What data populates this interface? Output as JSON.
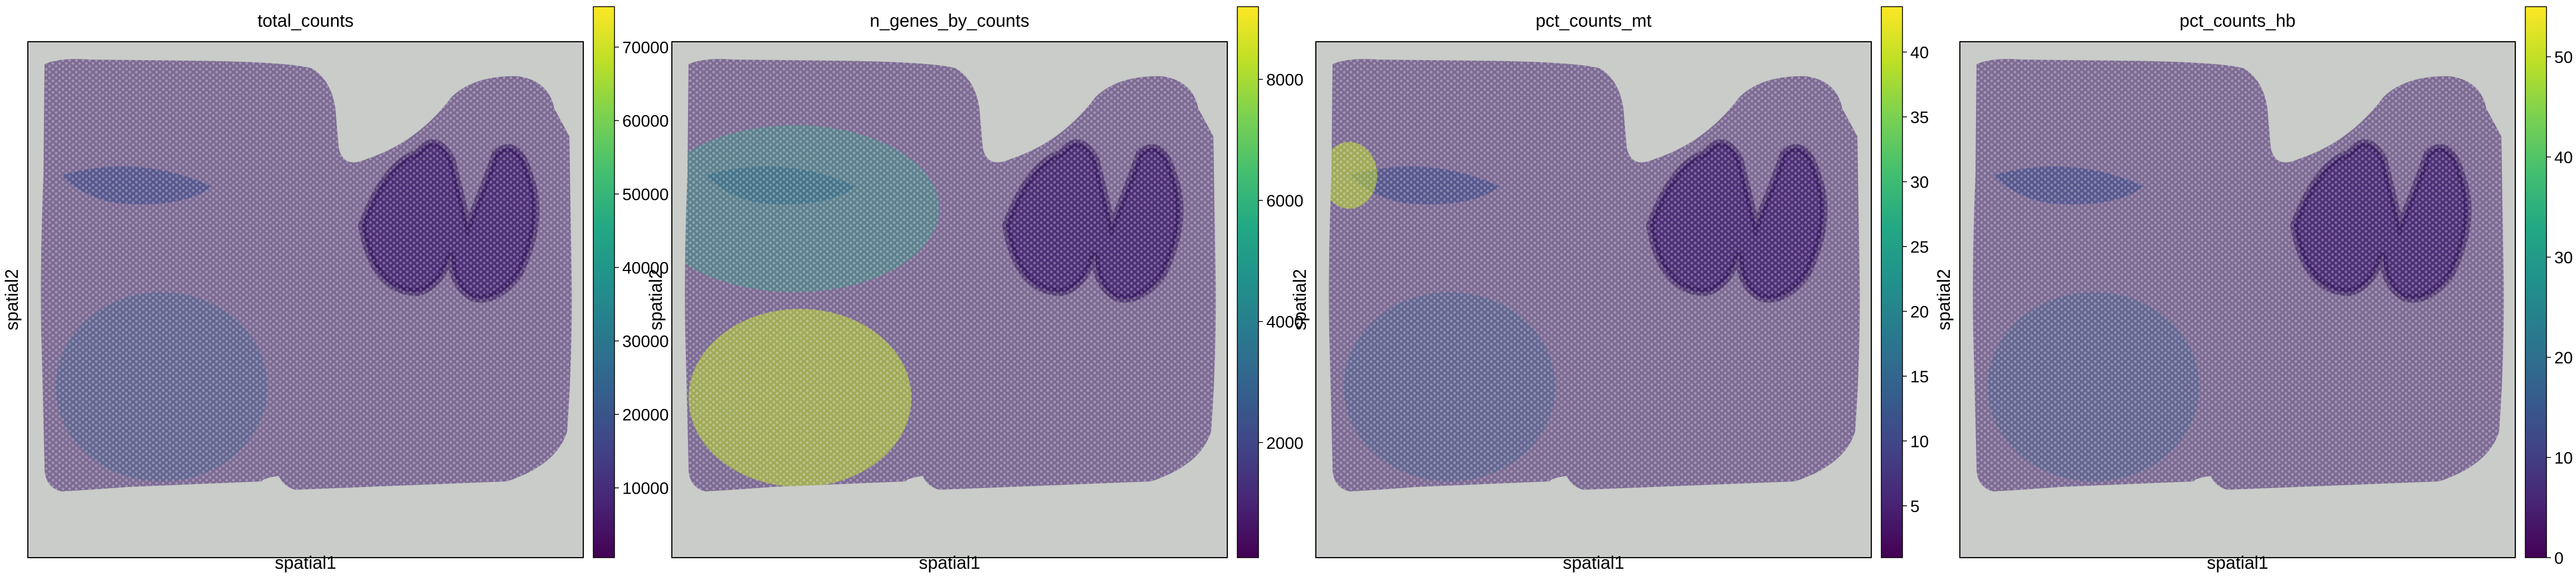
{
  "figure": {
    "colormap": "viridis",
    "tissue_background_color": "#b9bdb9",
    "tissue_colors": [
      "#8f6c9d",
      "#a583b1",
      "#7b5a8c",
      "#b49ac0"
    ],
    "frame_color": "#000000"
  },
  "chart_data": [
    {
      "type": "scatter",
      "title": "total_counts",
      "xlabel": "spatial1",
      "ylabel": "spatial2",
      "colorbar": {
        "range": [
          500,
          75500
        ],
        "ticks": [
          10000,
          20000,
          30000,
          40000,
          50000,
          60000,
          70000
        ],
        "tick_labels": [
          "10000",
          "20000",
          "30000",
          "40000",
          "50000",
          "60000",
          "70000"
        ]
      }
    },
    {
      "type": "scatter",
      "title": "n_genes_by_counts",
      "xlabel": "spatial1",
      "ylabel": "spatial2",
      "colorbar": {
        "range": [
          100,
          9200
        ],
        "ticks": [
          2000,
          4000,
          6000,
          8000
        ],
        "tick_labels": [
          "2000",
          "4000",
          "6000",
          "8000"
        ]
      }
    },
    {
      "type": "scatter",
      "title": "pct_counts_mt",
      "xlabel": "spatial1",
      "ylabel": "spatial2",
      "colorbar": {
        "range": [
          1,
          43.5
        ],
        "ticks": [
          5,
          10,
          15,
          20,
          25,
          30,
          35,
          40
        ],
        "tick_labels": [
          "5",
          "10",
          "15",
          "20",
          "25",
          "30",
          "35",
          "40"
        ]
      }
    },
    {
      "type": "scatter",
      "title": "pct_counts_hb",
      "xlabel": "spatial1",
      "ylabel": "spatial2",
      "colorbar": {
        "range": [
          0,
          55
        ],
        "ticks": [
          0,
          10,
          20,
          30,
          40,
          50
        ],
        "tick_labels": [
          "0",
          "10",
          "20",
          "30",
          "40",
          "50"
        ]
      }
    }
  ]
}
